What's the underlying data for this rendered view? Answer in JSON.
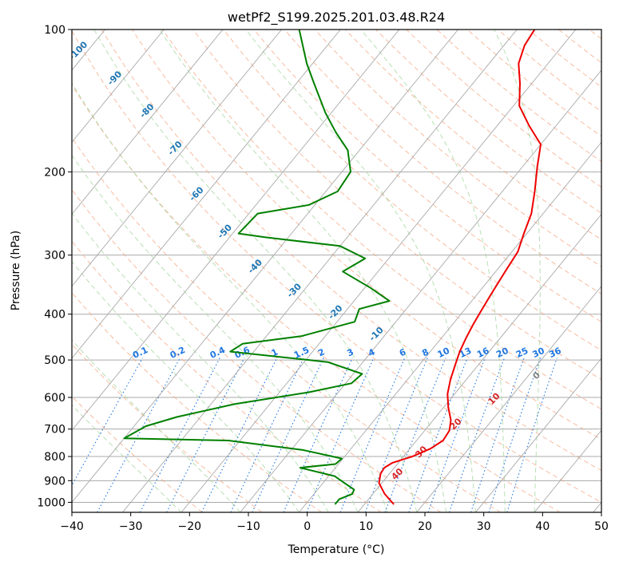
{
  "chart_data": {
    "type": "line",
    "subtype": "skew-T log-P sounding",
    "title": "wetPf2_S199.2025.201.03.48.R24",
    "xlabel": "Temperature (°C)",
    "ylabel": "Pressure (hPa)",
    "xlim": [
      -40,
      50
    ],
    "ylim": [
      1050,
      100
    ],
    "y_scale": "log",
    "grid": true,
    "x_ticks": [
      "−40",
      "−30",
      "−20",
      "−10",
      "0",
      "10",
      "20",
      "30",
      "40",
      "50"
    ],
    "y_ticks": [
      "100",
      "200",
      "300",
      "400",
      "500",
      "600",
      "700",
      "800",
      "900",
      "1000"
    ],
    "series": [
      {
        "role": "temperature",
        "color": "#ee0000",
        "points": [
          [
            15.0,
            1010
          ],
          [
            12.0,
            960
          ],
          [
            9.5,
            910
          ],
          [
            8.5,
            870
          ],
          [
            8.3,
            845
          ],
          [
            9.0,
            825
          ],
          [
            11.5,
            800
          ],
          [
            13.5,
            770
          ],
          [
            14.5,
            740
          ],
          [
            14.2,
            705
          ],
          [
            13.0,
            670
          ],
          [
            10.8,
            630
          ],
          [
            8.8,
            590
          ],
          [
            7.3,
            550
          ],
          [
            6.0,
            510
          ],
          [
            5.0,
            480
          ],
          [
            4.2,
            450
          ],
          [
            3.5,
            420
          ],
          [
            3.0,
            395
          ],
          [
            2.5,
            370
          ],
          [
            2.0,
            345
          ],
          [
            1.5,
            320
          ],
          [
            1.0,
            295
          ],
          [
            -0.5,
            270
          ],
          [
            -2.0,
            245
          ],
          [
            -4.5,
            220
          ],
          [
            -7.5,
            195
          ],
          [
            -10.0,
            175
          ],
          [
            -14.5,
            160
          ],
          [
            -19.0,
            145
          ],
          [
            -22.0,
            130
          ],
          [
            -25.0,
            118
          ],
          [
            -26.5,
            108
          ],
          [
            -27.0,
            100
          ]
        ]
      },
      {
        "role": "dewpoint",
        "color": "#008000",
        "points": [
          [
            5.0,
            1010
          ],
          [
            5.0,
            985
          ],
          [
            6.5,
            960
          ],
          [
            6.2,
            940
          ],
          [
            3.2,
            905
          ],
          [
            1.0,
            880
          ],
          [
            -6.0,
            845
          ],
          [
            -0.5,
            830
          ],
          [
            -0.2,
            808
          ],
          [
            -8.0,
            775
          ],
          [
            -22.0,
            740
          ],
          [
            -40.0,
            732
          ],
          [
            -38.0,
            690
          ],
          [
            -34.0,
            660
          ],
          [
            -26.0,
            620
          ],
          [
            -15.0,
            585
          ],
          [
            -9.0,
            560
          ],
          [
            -8.5,
            535
          ],
          [
            -16.0,
            505
          ],
          [
            -34.0,
            480
          ],
          [
            -33.0,
            462
          ],
          [
            -24.0,
            445
          ],
          [
            -17.0,
            415
          ],
          [
            -18.0,
            390
          ],
          [
            -14.0,
            375
          ],
          [
            -19.0,
            352
          ],
          [
            -26.0,
            325
          ],
          [
            -24.0,
            305
          ],
          [
            -30.0,
            287
          ],
          [
            -44.0,
            275
          ],
          [
            -49.0,
            270
          ],
          [
            -48.5,
            245
          ],
          [
            -41.0,
            235
          ],
          [
            -38.0,
            220
          ],
          [
            -38.5,
            200
          ],
          [
            -42.0,
            180
          ],
          [
            -46.5,
            165
          ],
          [
            -51.0,
            150
          ],
          [
            -57.0,
            130
          ],
          [
            -61.0,
            118
          ],
          [
            -67.0,
            100
          ]
        ]
      }
    ],
    "reference_lines": {
      "isotherms": "solid grey, every 10 °C, skewed",
      "dry_adiabats": "dashed light red",
      "moist_adiabats": "dashed light green",
      "mixing_ratio": "dotted blue",
      "isobars": "solid grey at major pressure levels"
    },
    "annotations": {
      "dry_adiabat_labels": [
        "-100",
        "-90",
        "-80",
        "-70",
        "-60",
        "-50",
        "-40",
        "-30",
        "-20",
        "-10"
      ],
      "mixing_ratio_labels": [
        "0.1",
        "0.2",
        "0.4",
        "0.6",
        "1",
        "1.5",
        "2",
        "3",
        "4",
        "6",
        "8",
        "10",
        "13",
        "16",
        "20",
        "25",
        "30",
        "36"
      ],
      "temperature_labels": [
        "0",
        "10",
        "20",
        "30",
        "40"
      ]
    },
    "colors": {
      "temperature": "#ee0000",
      "dewpoint": "#008000",
      "isotherm": "#a9a9a9",
      "dry_adiabat": "#f4a582",
      "moist_adiabat": "#a6d8a0",
      "mixing_ratio": "#1f77e0",
      "adiabat_label": "#1f77b4",
      "temp_label_pos": "#d62728",
      "temp_label_zero": "#808080"
    }
  }
}
